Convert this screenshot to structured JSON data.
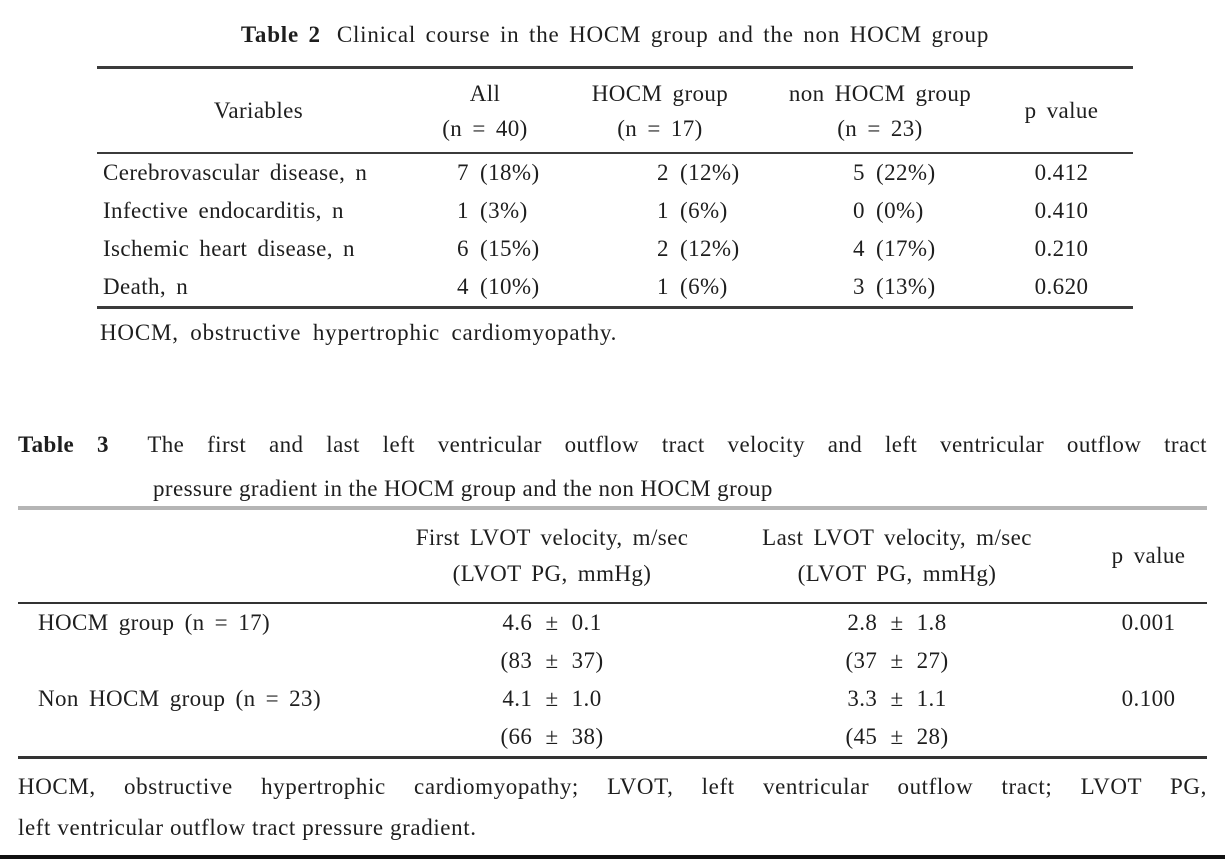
{
  "colors": {
    "text": "#1e1e1e",
    "rule_dark": "#3b3b3b",
    "rule_gray": "#b5b5b5",
    "page_bottom_bar": "#111111",
    "background": "#ffffff"
  },
  "table2": {
    "label": "Table 2",
    "caption": "Clinical course in the HOCM group and the non HOCM group",
    "columns": [
      {
        "title": "Variables",
        "sub": ""
      },
      {
        "title": "All",
        "sub": "(n = 40)"
      },
      {
        "title": "HOCM group",
        "sub": "(n = 17)"
      },
      {
        "title": "non HOCM group",
        "sub": "(n = 23)"
      },
      {
        "title": "p value",
        "sub": ""
      }
    ],
    "rows": [
      {
        "variable": "Cerebrovascular disease, n",
        "all": "7 (18%)",
        "hocm": "2 (12%)",
        "non_hocm": "5 (22%)",
        "p": "0.412"
      },
      {
        "variable": "Infective endocarditis, n",
        "all": "1 (3%)",
        "hocm": "1 (6%)",
        "non_hocm": "0 (0%)",
        "p": "0.410"
      },
      {
        "variable": "Ischemic heart disease, n",
        "all": "6 (15%)",
        "hocm": "2 (12%)",
        "non_hocm": "4 (17%)",
        "p": "0.210"
      },
      {
        "variable": "Death, n",
        "all": "4 (10%)",
        "hocm": "1 (6%)",
        "non_hocm": "3 (13%)",
        "p": "0.620"
      }
    ],
    "footnote": "HOCM, obstructive hypertrophic cardiomyopathy."
  },
  "table3": {
    "label": "Table 3",
    "caption_line1": "The first and last left ventricular outflow tract velocity and left ventricular outflow tract",
    "caption_line2": "pressure gradient in the HOCM group and the non HOCM group",
    "columns": [
      {
        "title": "First LVOT velocity, m/sec",
        "sub": "(LVOT PG, mmHg)"
      },
      {
        "title": "Last LVOT velocity, m/sec",
        "sub": "(LVOT PG, mmHg)"
      },
      {
        "title": "p value",
        "sub": ""
      }
    ],
    "rows": [
      {
        "group": "HOCM group (n = 17)",
        "first_velocity": "4.6 ± 0.1",
        "first_pg": "(83 ± 37)",
        "last_velocity": "2.8 ± 1.8",
        "last_pg": "(37 ± 27)",
        "p": "0.001"
      },
      {
        "group": "Non HOCM group (n = 23)",
        "first_velocity": "4.1 ± 1.0",
        "first_pg": "(66 ± 38)",
        "last_velocity": "3.3 ± 1.1",
        "last_pg": "(45 ± 28)",
        "p": "0.100"
      }
    ],
    "footnote_line1": "HOCM, obstructive hypertrophic cardiomyopathy; LVOT, left ventricular outflow tract; LVOT PG,",
    "footnote_line2": "left ventricular outflow tract pressure gradient."
  }
}
